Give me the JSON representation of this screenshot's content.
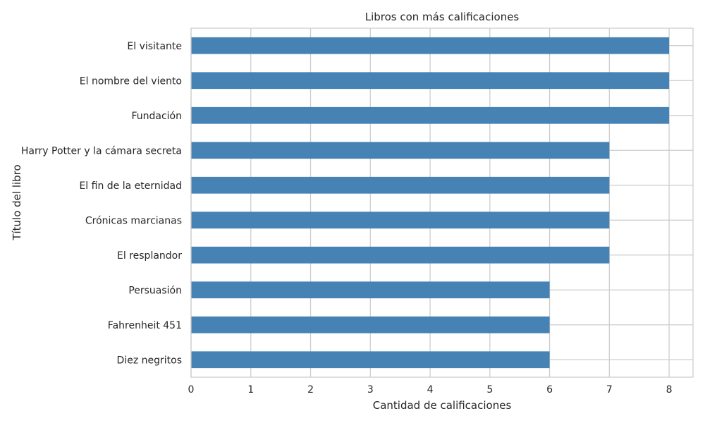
{
  "chart_data": {
    "type": "bar",
    "orientation": "horizontal",
    "title": "Libros con más calificaciones",
    "xlabel": "Cantidad de calificaciones",
    "ylabel": "Título del libro",
    "categories": [
      "El visitante",
      "El nombre del viento",
      "Fundación",
      "Harry Potter y la cámara secreta",
      "El fin de la eternidad",
      "Crónicas marcianas",
      "El resplandor",
      "Persuasión",
      "Fahrenheit 451",
      "Diez negritos"
    ],
    "values": [
      8,
      8,
      8,
      7,
      7,
      7,
      7,
      6,
      6,
      6
    ],
    "xlim": [
      0,
      8.4
    ],
    "xticks": [
      0,
      1,
      2,
      3,
      4,
      5,
      6,
      7,
      8
    ],
    "grid": true,
    "legend": "none",
    "bar_color": "#4682b4",
    "grid_color": "#cccccc",
    "axis_color": "#cccccc",
    "text_color": "#262626"
  }
}
